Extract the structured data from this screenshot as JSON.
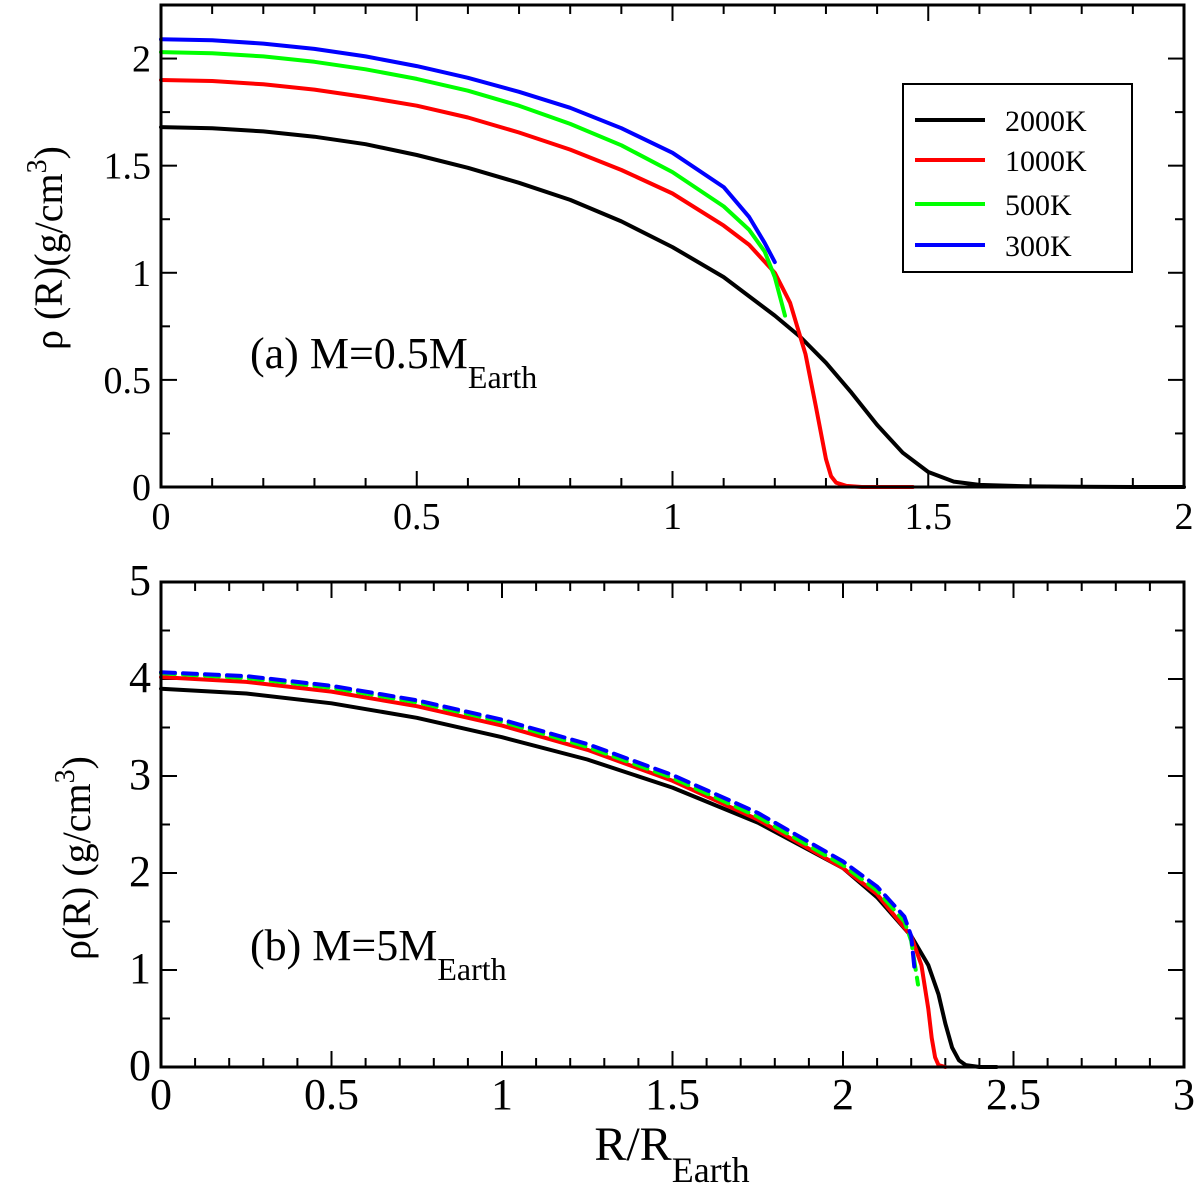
{
  "chart_data": [
    {
      "type": "line",
      "panel": "top",
      "ylabel": "ρ (R)(g/cm",
      "ylabel_sup": "3",
      "ylabel_end": ")",
      "xlabel": "",
      "xlim": [
        0,
        2
      ],
      "ylim": [
        0,
        2.25
      ],
      "x_ticks": [
        0,
        0.5,
        1,
        1.5,
        2
      ],
      "x_tick_labels": [
        "0",
        "0.5",
        "1",
        "1.5",
        "2"
      ],
      "y_ticks": [
        0,
        0.5,
        1,
        1.5,
        2
      ],
      "y_tick_labels": [
        "0",
        "0.5",
        "1",
        "1.5",
        "2"
      ],
      "annotation": {
        "main": "(a) M=0.5M",
        "sub": "Earth"
      },
      "legend": {
        "position": "top-right",
        "entries": [
          "2000K",
          "1000K",
          "500K",
          "300K"
        ]
      },
      "series": [
        {
          "name": "2000K",
          "color": "#000000",
          "dashed": false,
          "x": [
            0,
            0.1,
            0.2,
            0.3,
            0.4,
            0.5,
            0.6,
            0.7,
            0.8,
            0.9,
            1.0,
            1.1,
            1.2,
            1.25,
            1.3,
            1.35,
            1.4,
            1.45,
            1.5,
            1.55,
            1.6,
            1.7,
            1.8,
            1.9,
            2.0
          ],
          "y": [
            1.68,
            1.675,
            1.66,
            1.635,
            1.6,
            1.55,
            1.49,
            1.42,
            1.34,
            1.24,
            1.12,
            0.98,
            0.8,
            0.7,
            0.58,
            0.44,
            0.29,
            0.16,
            0.07,
            0.025,
            0.01,
            0.003,
            0.001,
            0.0,
            0.0
          ]
        },
        {
          "name": "1000K",
          "color": "#ff0000",
          "dashed": false,
          "x": [
            0,
            0.1,
            0.2,
            0.3,
            0.4,
            0.5,
            0.6,
            0.7,
            0.8,
            0.9,
            1.0,
            1.1,
            1.15,
            1.2,
            1.23,
            1.26,
            1.28,
            1.3,
            1.31,
            1.32,
            1.34,
            1.37,
            1.4,
            1.47
          ],
          "y": [
            1.9,
            1.895,
            1.88,
            1.855,
            1.82,
            1.78,
            1.725,
            1.655,
            1.575,
            1.48,
            1.37,
            1.22,
            1.13,
            1.0,
            0.86,
            0.62,
            0.38,
            0.13,
            0.05,
            0.02,
            0.005,
            0.0,
            0.0,
            0.0
          ]
        },
        {
          "name": "500K",
          "color": "#00ff00",
          "dashed": false,
          "x": [
            0,
            0.1,
            0.2,
            0.3,
            0.4,
            0.5,
            0.6,
            0.7,
            0.8,
            0.9,
            1.0,
            1.1,
            1.15,
            1.18,
            1.2,
            1.22
          ],
          "y": [
            2.03,
            2.025,
            2.01,
            1.985,
            1.95,
            1.905,
            1.85,
            1.78,
            1.695,
            1.595,
            1.47,
            1.31,
            1.2,
            1.1,
            0.98,
            0.8
          ]
        },
        {
          "name": "300K",
          "color": "#0000ff",
          "dashed": false,
          "x": [
            0,
            0.1,
            0.2,
            0.3,
            0.4,
            0.5,
            0.6,
            0.7,
            0.8,
            0.9,
            1.0,
            1.1,
            1.15,
            1.18,
            1.2
          ],
          "y": [
            2.09,
            2.085,
            2.07,
            2.045,
            2.01,
            1.965,
            1.91,
            1.845,
            1.77,
            1.675,
            1.56,
            1.4,
            1.26,
            1.14,
            1.05
          ]
        }
      ]
    },
    {
      "type": "line",
      "panel": "bottom",
      "ylabel": "ρ(R) (g/cm",
      "ylabel_sup": "3",
      "ylabel_end": ")",
      "xlabel": "R/R",
      "xlabel_sub": "Earth",
      "xlim": [
        0,
        3
      ],
      "ylim": [
        0,
        5
      ],
      "x_ticks": [
        0,
        0.5,
        1,
        1.5,
        2,
        2.5,
        3
      ],
      "x_tick_labels": [
        "0",
        "0.5",
        "1",
        "1.5",
        "2",
        "2.5",
        "3"
      ],
      "y_ticks": [
        0,
        1,
        2,
        3,
        4,
        5
      ],
      "y_tick_labels": [
        "0",
        "1",
        "2",
        "3",
        "4",
        "5"
      ],
      "annotation": {
        "main": "(b) M=5M",
        "sub": "Earth"
      },
      "series": [
        {
          "name": "2000K",
          "color": "#000000",
          "dashed": false,
          "x": [
            0,
            0.25,
            0.5,
            0.75,
            1.0,
            1.25,
            1.5,
            1.75,
            2.0,
            2.1,
            2.2,
            2.25,
            2.28,
            2.3,
            2.32,
            2.34,
            2.36,
            2.4,
            2.45
          ],
          "y": [
            3.9,
            3.85,
            3.75,
            3.6,
            3.4,
            3.17,
            2.88,
            2.52,
            2.05,
            1.75,
            1.35,
            1.05,
            0.75,
            0.45,
            0.2,
            0.07,
            0.02,
            0.0,
            0.0
          ]
        },
        {
          "name": "1000K",
          "color": "#ff0000",
          "dashed": false,
          "x": [
            0,
            0.25,
            0.5,
            0.75,
            1.0,
            1.25,
            1.5,
            1.75,
            2.0,
            2.1,
            2.2,
            2.23,
            2.25,
            2.26,
            2.27,
            2.28,
            2.3
          ],
          "y": [
            4.02,
            3.97,
            3.87,
            3.72,
            3.52,
            3.27,
            2.95,
            2.55,
            2.05,
            1.78,
            1.35,
            1.05,
            0.6,
            0.3,
            0.1,
            0.02,
            0.0
          ]
        },
        {
          "name": "500K",
          "color": "#00ff00",
          "dashed": true,
          "x": [
            0,
            0.25,
            0.5,
            0.75,
            1.0,
            1.25,
            1.5,
            1.75,
            2.0,
            2.1,
            2.18,
            2.2,
            2.22
          ],
          "y": [
            4.06,
            4.01,
            3.91,
            3.76,
            3.56,
            3.3,
            2.98,
            2.58,
            2.08,
            1.82,
            1.5,
            1.3,
            0.85
          ]
        },
        {
          "name": "300K",
          "color": "#0000ff",
          "dashed": true,
          "x": [
            0,
            0.25,
            0.5,
            0.75,
            1.0,
            1.25,
            1.5,
            1.75,
            2.0,
            2.1,
            2.18,
            2.2,
            2.21
          ],
          "y": [
            4.07,
            4.03,
            3.93,
            3.78,
            3.58,
            3.33,
            3.01,
            2.62,
            2.12,
            1.86,
            1.55,
            1.35,
            1.0
          ]
        }
      ]
    }
  ]
}
